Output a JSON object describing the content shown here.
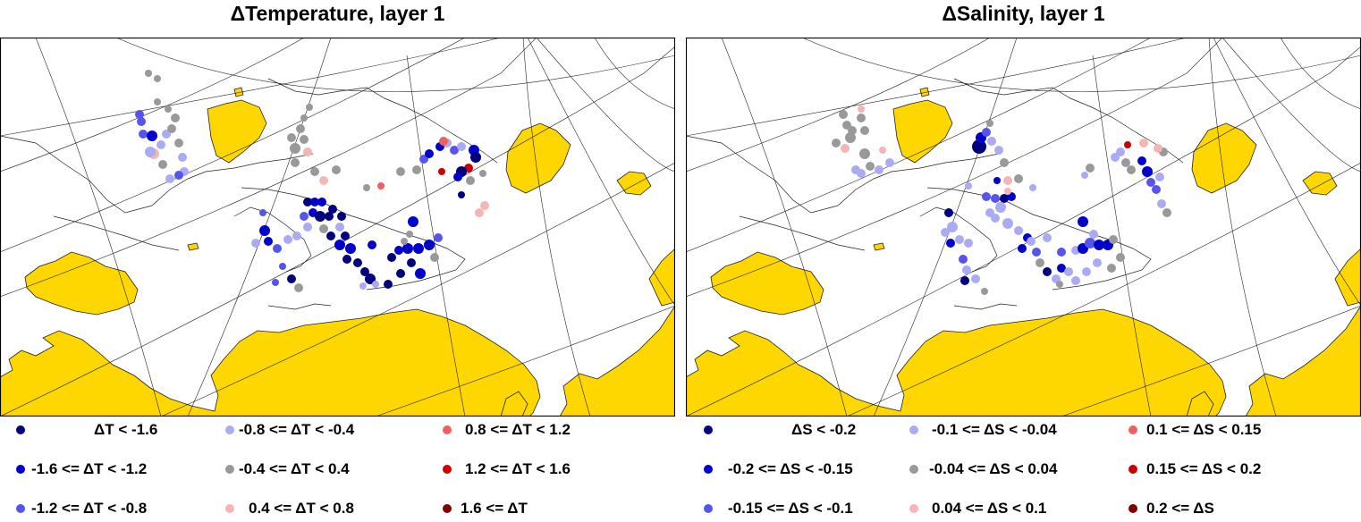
{
  "panels": [
    {
      "id": "temp",
      "title": "ΔTemperature, layer 1",
      "legend": [
        {
          "label": "ΔT < -1.6",
          "color": "#00007f"
        },
        {
          "label": "-1.6 <= ΔT < -1.2",
          "color": "#0000cc"
        },
        {
          "label": "-1.2 <= ΔT < -0.8",
          "color": "#5555ee"
        },
        {
          "label": "-0.8 <= ΔT < -0.4",
          "color": "#aaaaf5"
        },
        {
          "label": "-0.4 <= ΔT < 0.4",
          "color": "#999999"
        },
        {
          "label": "0.4 <= ΔT < 0.8",
          "color": "#f5b5b5"
        },
        {
          "label": "0.8 <= ΔT < 1.2",
          "color": "#f06060"
        },
        {
          "label": "1.2 <= ΔT < 1.6",
          "color": "#cc0000"
        },
        {
          "label": "1.6 <= ΔT",
          "color": "#7f0000"
        }
      ]
    },
    {
      "id": "sal",
      "title": "ΔSalinity, layer 1",
      "legend": [
        {
          "label": "ΔS < -0.2",
          "color": "#00007f"
        },
        {
          "label": "-0.2 <= ΔS < -0.15",
          "color": "#0000cc"
        },
        {
          "label": "-0.15 <= ΔS < -0.1",
          "color": "#5555ee"
        },
        {
          "label": "-0.1 <= ΔS < -0.04",
          "color": "#aaaaf5"
        },
        {
          "label": "-0.04 <= ΔS < 0.04",
          "color": "#999999"
        },
        {
          "label": "0.04 <= ΔS < 0.1",
          "color": "#f5b5b5"
        },
        {
          "label": "0.1 <= ΔS < 0.15",
          "color": "#f06060"
        },
        {
          "label": "0.15 <= ΔS < 0.2",
          "color": "#cc0000"
        },
        {
          "label": "0.2 <= ΔS",
          "color": "#7f0000"
        }
      ]
    }
  ],
  "map_style": {
    "land_color": "#ffd700",
    "ocean_color": "#ffffff",
    "line_color": "#222222"
  }
}
